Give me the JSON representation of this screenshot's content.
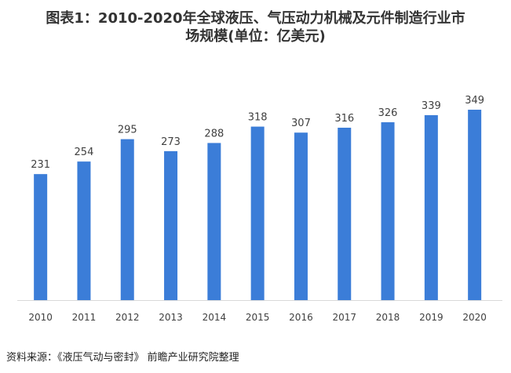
{
  "chart_data": {
    "type": "bar",
    "title_lines": [
      "图表1：2010-2020年全球液压、气压动力机械及元件制造行业市",
      "场规模(单位：亿美元)"
    ],
    "categories": [
      "2010",
      "2011",
      "2012",
      "2013",
      "2014",
      "2015",
      "2016",
      "2017",
      "2018",
      "2019",
      "2020"
    ],
    "values": [
      231,
      254,
      295,
      273,
      288,
      318,
      307,
      316,
      326,
      339,
      349
    ],
    "ylim": [
      0,
      349
    ],
    "bar_color": "#3b7dd8",
    "grid": false,
    "legend": "none"
  },
  "source": "资料来源：《液压气动与密封》 前瞻产业研究院整理"
}
